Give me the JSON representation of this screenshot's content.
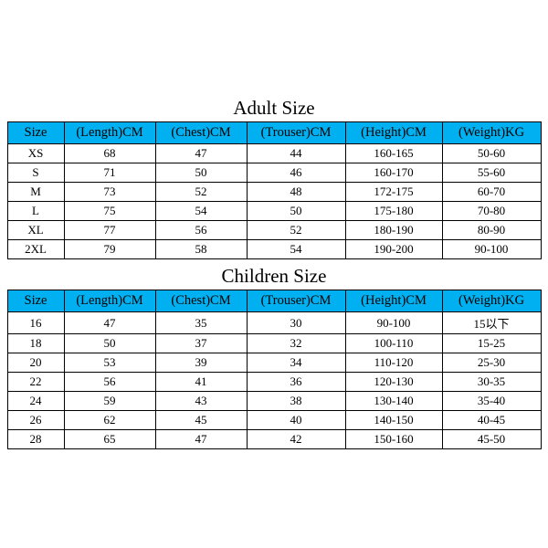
{
  "header_color": "#00b0f0",
  "adult": {
    "title": "Adult Size",
    "columns": [
      "Size",
      "(Length)CM",
      "(Chest)CM",
      "(Trouser)CM",
      "(Height)CM",
      "(Weight)KG"
    ],
    "rows": [
      [
        "XS",
        "68",
        "47",
        "44",
        "160-165",
        "50-60"
      ],
      [
        "S",
        "71",
        "50",
        "46",
        "160-170",
        "55-60"
      ],
      [
        "M",
        "73",
        "52",
        "48",
        "172-175",
        "60-70"
      ],
      [
        "L",
        "75",
        "54",
        "50",
        "175-180",
        "70-80"
      ],
      [
        "XL",
        "77",
        "56",
        "52",
        "180-190",
        "80-90"
      ],
      [
        "2XL",
        "79",
        "58",
        "54",
        "190-200",
        "90-100"
      ]
    ]
  },
  "children": {
    "title": "Children Size",
    "columns": [
      "Size",
      "(Length)CM",
      "(Chest)CM",
      "(Trouser)CM",
      "(Height)CM",
      "(Weight)KG"
    ],
    "rows": [
      [
        "16",
        "47",
        "35",
        "30",
        "90-100",
        "15以下"
      ],
      [
        "18",
        "50",
        "37",
        "32",
        "100-110",
        "15-25"
      ],
      [
        "20",
        "53",
        "39",
        "34",
        "110-120",
        "25-30"
      ],
      [
        "22",
        "56",
        "41",
        "36",
        "120-130",
        "30-35"
      ],
      [
        "24",
        "59",
        "43",
        "38",
        "130-140",
        "35-40"
      ],
      [
        "26",
        "62",
        "45",
        "40",
        "140-150",
        "40-45"
      ],
      [
        "28",
        "65",
        "47",
        "42",
        "150-160",
        "45-50"
      ]
    ]
  }
}
